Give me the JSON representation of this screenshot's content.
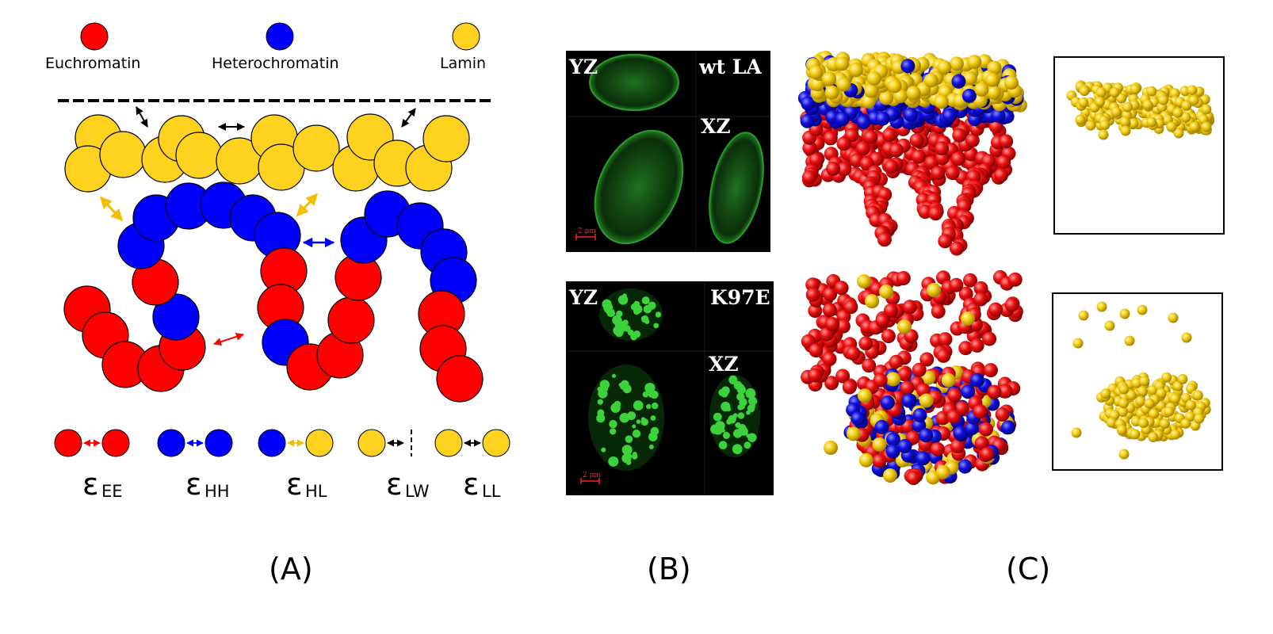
{
  "panel_a": {
    "legend": [
      {
        "label": "Euchromatin",
        "color": "#ff0000"
      },
      {
        "label": "Heterochromatin",
        "color": "#0000ff"
      },
      {
        "label": "Lamin",
        "color": "#ffd21f"
      }
    ],
    "interactions": [
      {
        "symbol": "ε",
        "sub": "EE",
        "left_color": "#ff0000",
        "right_color": "#ff0000",
        "arrow_color": "#ff0000",
        "right": "bead"
      },
      {
        "symbol": "ε",
        "sub": "HH",
        "left_color": "#0000ff",
        "right_color": "#0000ff",
        "arrow_color": "#0000ff",
        "right": "bead"
      },
      {
        "symbol": "ε",
        "sub": "HL",
        "left_color": "#0000ff",
        "right_color": "#ffd21f",
        "arrow_color": "#ffd21f",
        "right": "bead"
      },
      {
        "symbol": "ε",
        "sub": "LW",
        "left_color": "#ffd21f",
        "right_color": "",
        "arrow_color": "#000000",
        "right": "wall"
      },
      {
        "symbol": "ε",
        "sub": "LL",
        "left_color": "#ffd21f",
        "right_color": "#ffd21f",
        "arrow_color": "#000000",
        "right": "bead"
      }
    ],
    "label": "(A)"
  },
  "panel_b": {
    "images": [
      {
        "views": [
          "YZ",
          "XZ"
        ],
        "condition": "wt LA",
        "scale": "2 μm"
      },
      {
        "views": [
          "YZ",
          "XZ"
        ],
        "condition": "K97E",
        "scale": "2 μm"
      }
    ],
    "label": "(B)"
  },
  "panel_c": {
    "label": "(C)"
  },
  "colors": {
    "euchromatin": "#ff0000",
    "heterochromatin": "#0000ff",
    "lamin": "#ffd21f",
    "micro_bg": "#000000",
    "fluor": "#3cd23c"
  }
}
